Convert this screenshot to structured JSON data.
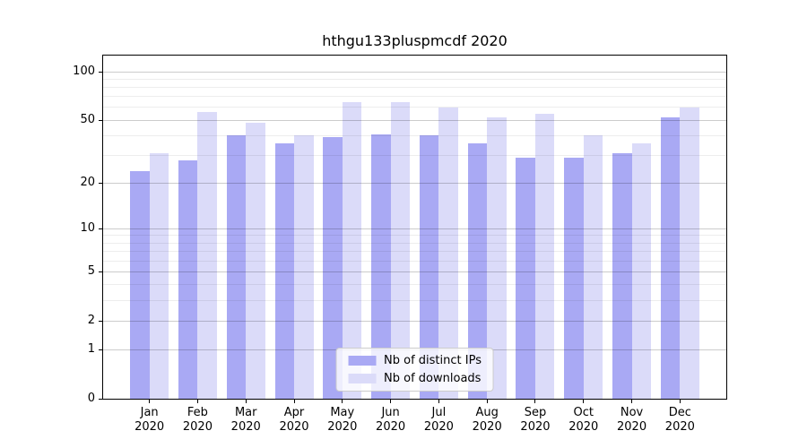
{
  "colors": {
    "ips": "#a9a9f4",
    "downloads": "#dbdbf9",
    "grid_major": "rgba(0,0,0,0.20)",
    "grid_minor": "rgba(0,0,0,0.07)",
    "axis": "#000000",
    "legend_border": "#cccccc",
    "background": "#ffffff",
    "text": "#000000"
  },
  "chart_data": {
    "type": "bar",
    "title": "hthgu133pluspmcdf 2020",
    "yscale": "log1p",
    "grid": true,
    "legend_position": "lower center",
    "categories": [
      "Jan",
      "Feb",
      "Mar",
      "Apr",
      "May",
      "Jun",
      "Jul",
      "Aug",
      "Sep",
      "Oct",
      "Nov",
      "Dec"
    ],
    "year_label": "2020",
    "series": [
      {
        "name": "Nb of distinct IPs",
        "values": [
          24,
          28,
          40,
          36,
          39,
          41,
          40,
          36,
          29,
          29,
          31,
          52
        ]
      },
      {
        "name": "Nb of downloads",
        "values": [
          31,
          56,
          48,
          40,
          65,
          65,
          60,
          52,
          55,
          40,
          36,
          60
        ]
      }
    ],
    "yticks": [
      0,
      1,
      2,
      5,
      10,
      20,
      50,
      100
    ],
    "yticks_minor": [
      3,
      4,
      6,
      7,
      8,
      9,
      30,
      40,
      60,
      70,
      80,
      90
    ],
    "ylim": [
      0,
      126
    ],
    "xlabel": "",
    "ylabel": ""
  }
}
